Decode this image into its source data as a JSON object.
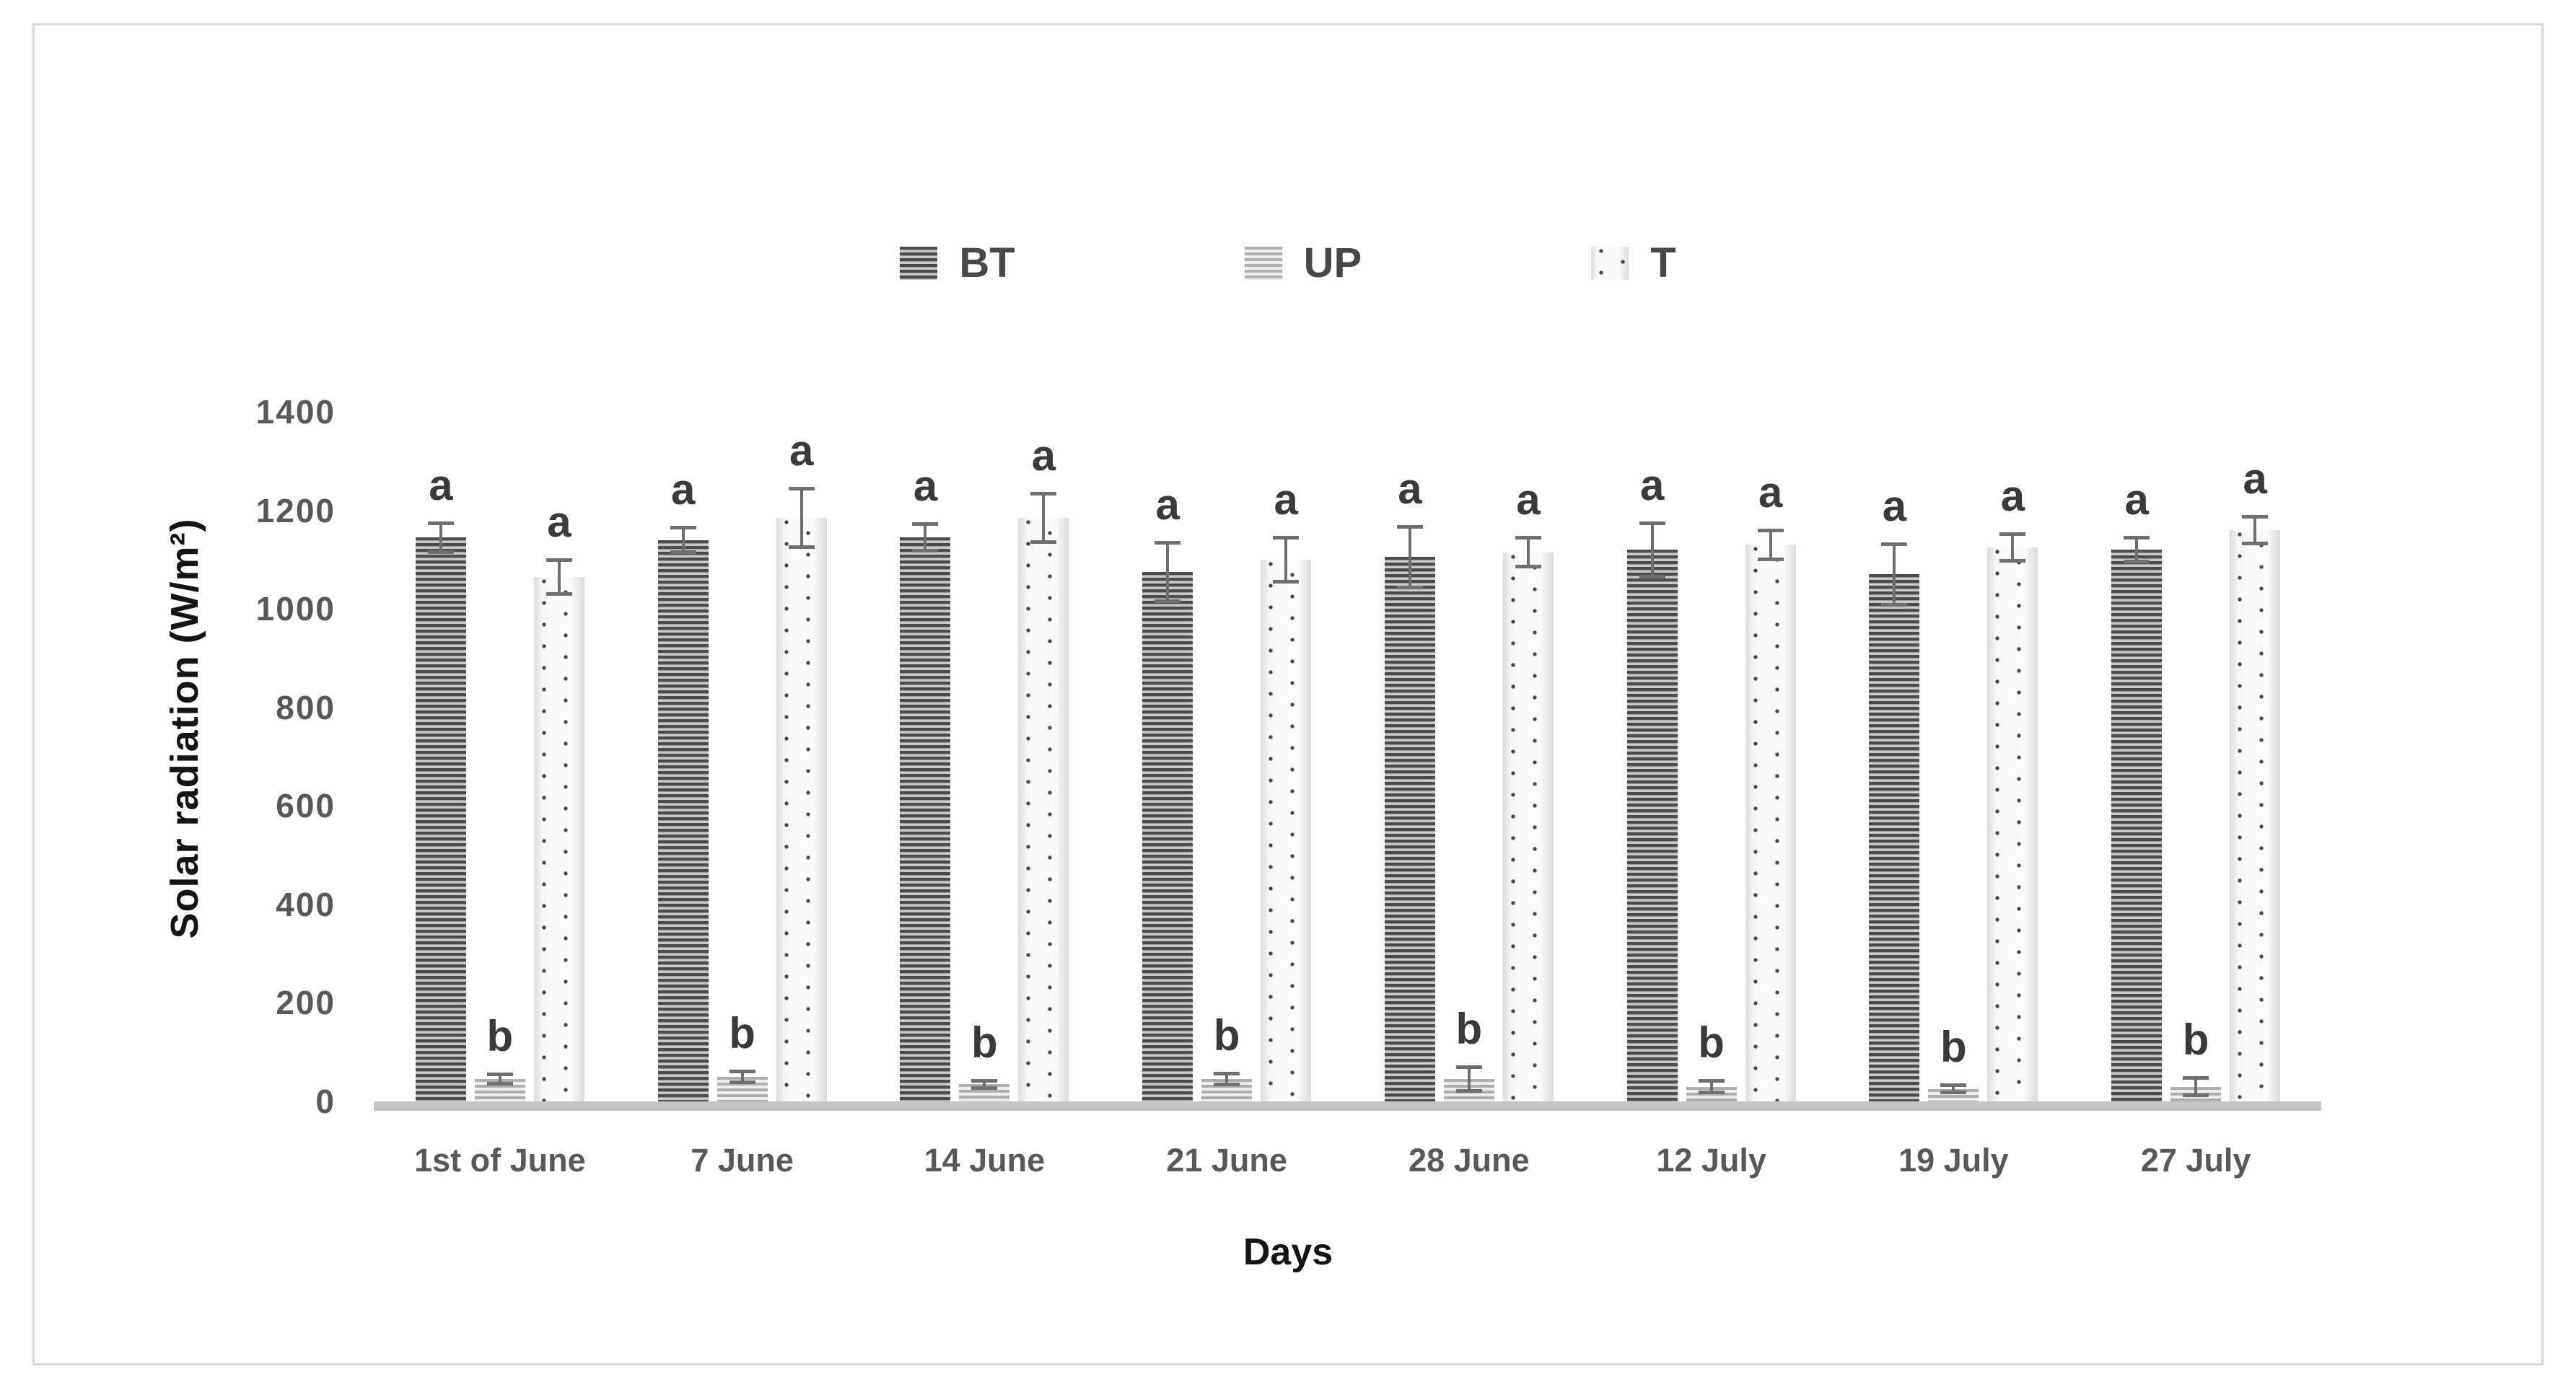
{
  "chart_data": {
    "type": "bar",
    "title": "",
    "xlabel": "Days",
    "ylabel": "Solar radiation (W/m²)",
    "ylim": [
      0,
      1400
    ],
    "yticks": [
      0,
      200,
      400,
      600,
      800,
      1000,
      1200,
      1400
    ],
    "grid": false,
    "legend_position": "top-center",
    "error_bars": true,
    "categories": [
      "1st of June",
      "7 June",
      "14 June",
      "21 June",
      "28 June",
      "12 July",
      "19 July",
      "27 July"
    ],
    "series": [
      {
        "name": "BT",
        "pattern": "dark-horizontal-stripes",
        "values": [
          1145,
          1140,
          1145,
          1075,
          1105,
          1120,
          1070,
          1120
        ],
        "errors": [
          30,
          25,
          28,
          60,
          62,
          55,
          62,
          25
        ],
        "letters": [
          "a",
          "a",
          "a",
          "a",
          "a",
          "a",
          "a",
          "a"
        ]
      },
      {
        "name": "UP",
        "pattern": "light-horizontal-stripes",
        "values": [
          45,
          50,
          35,
          45,
          45,
          30,
          25,
          30
        ],
        "errors": [
          10,
          12,
          8,
          12,
          25,
          12,
          8,
          18
        ],
        "letters": [
          "b",
          "b",
          "b",
          "b",
          "b",
          "b",
          "b",
          "b"
        ]
      },
      {
        "name": "T",
        "pattern": "white-dotted",
        "values": [
          1065,
          1185,
          1185,
          1100,
          1115,
          1130,
          1125,
          1160
        ],
        "errors": [
          35,
          60,
          50,
          45,
          30,
          30,
          28,
          28
        ],
        "letters": [
          "a",
          "a",
          "a",
          "a",
          "a",
          "a",
          "a",
          "a"
        ]
      }
    ],
    "colors": {
      "axis_text": "#595959",
      "axis_title": "#141414",
      "legend_text": "#484848",
      "significance_letter": "#3a3a3a",
      "error_bar": "#6f6f6f",
      "baseline": "#c5c5c5",
      "frame_border": "#dadada",
      "bt_stripe_dark": "#4c4c4c",
      "bt_stripe_light": "#c9c9c9",
      "up_stripe_dark": "#aeaeae",
      "up_stripe_light": "#ededed",
      "t_background": "#fafafa",
      "t_dot": "#4a4a4a"
    }
  }
}
